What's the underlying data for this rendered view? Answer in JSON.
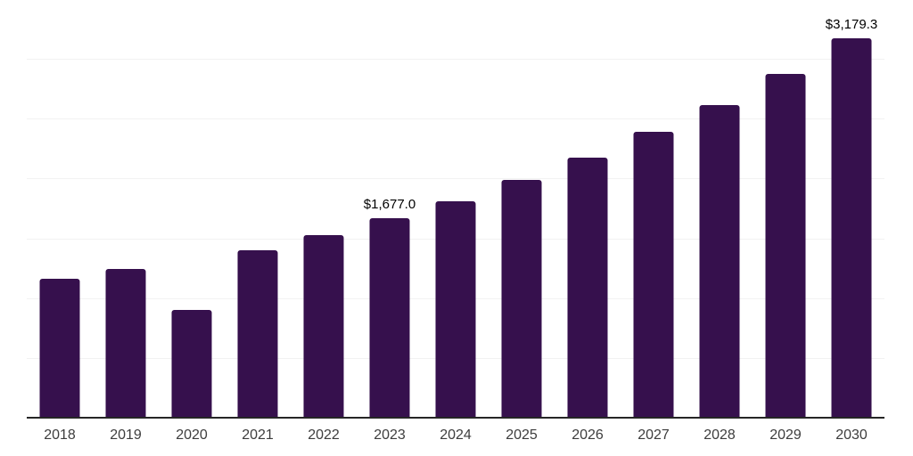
{
  "chart_data": {
    "type": "bar",
    "title": "",
    "xlabel": "",
    "ylabel": "",
    "categories": [
      "2018",
      "2019",
      "2020",
      "2021",
      "2022",
      "2023",
      "2024",
      "2025",
      "2026",
      "2027",
      "2028",
      "2029",
      "2030"
    ],
    "values": [
      1168,
      1250,
      911,
      1411,
      1535,
      1677.0,
      1821,
      1995,
      2186,
      2397,
      2625,
      2886,
      3179.3
    ],
    "value_labels": {
      "2023": "$1,677.0",
      "2030": "$3,179.3"
    },
    "ylim": [
      0,
      3500
    ],
    "gridline_step": 500,
    "grid": true,
    "legend": false,
    "colors": {
      "bar": "#36104d",
      "gridline": "#f2f2f2",
      "axis_line": "#262626",
      "tick_label": "#3d3d3d",
      "value_label": "#000000",
      "background": "#ffffff"
    }
  }
}
